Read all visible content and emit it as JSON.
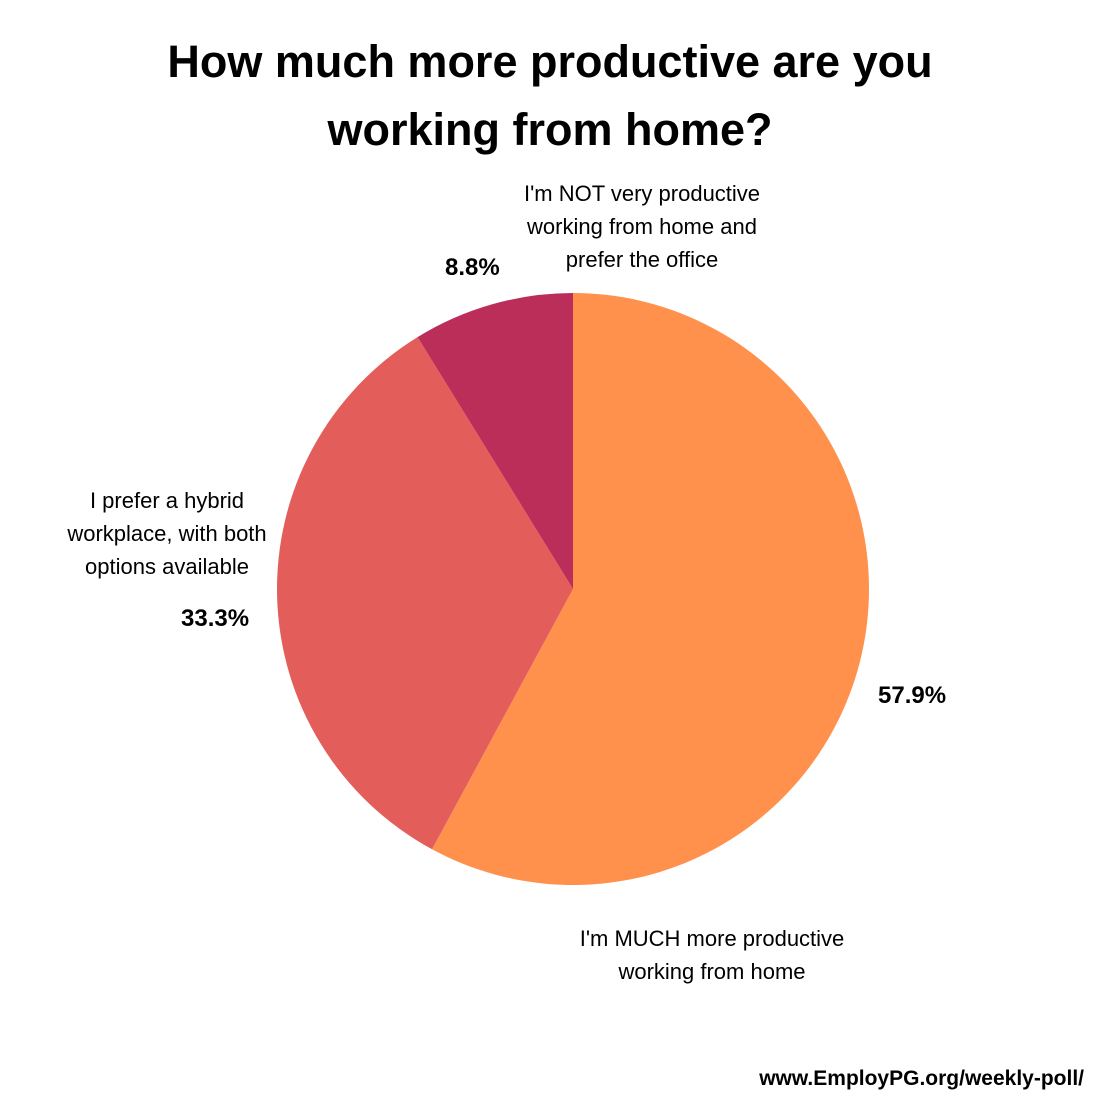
{
  "title_lines": [
    "How much more productive are you",
    "working from home?"
  ],
  "chart_data": {
    "type": "pie",
    "title": "How much more productive are you working from home?",
    "start_angle_deg": 0,
    "direction": "clockwise",
    "slices": [
      {
        "label_lines": [
          "I'm MUCH more productive",
          "working from home"
        ],
        "value": 57.9,
        "value_label": "57.9%",
        "color": "#FF914D"
      },
      {
        "label_lines": [
          "I prefer a hybrid",
          "workplace, with both",
          "options available"
        ],
        "value": 33.3,
        "value_label": "33.3%",
        "color": "#E35D5B"
      },
      {
        "label_lines": [
          "I'm NOT very productive",
          "working from home and",
          "prefer the office"
        ],
        "value": 8.8,
        "value_label": "8.8%",
        "color": "#BB2E5A"
      }
    ]
  },
  "footer": "www.EmployPG.org/weekly-poll/"
}
